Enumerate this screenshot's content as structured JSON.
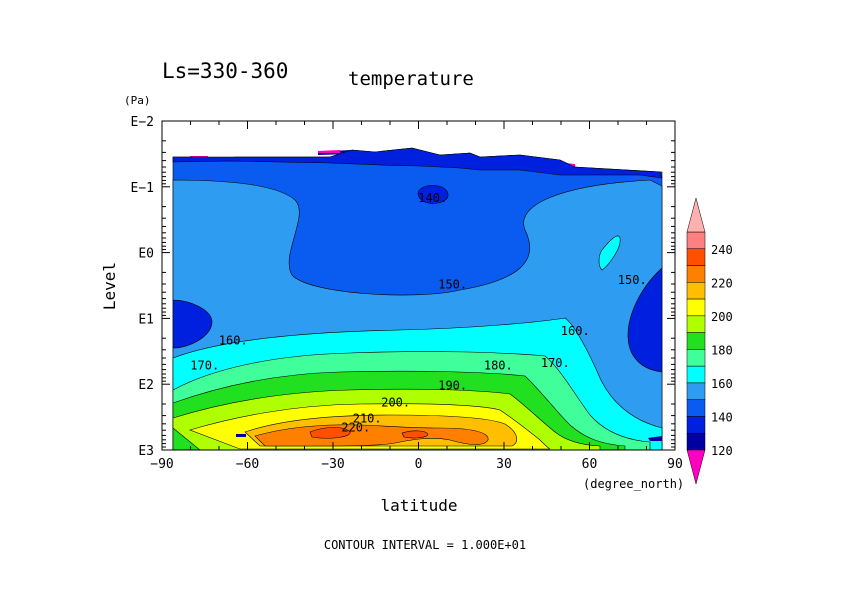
{
  "chart_data": {
    "type": "contour",
    "title": "Ls=330-360",
    "subtitle": "temperature",
    "xlabel": "latitude",
    "xunit": "(degree_north)",
    "ylabel": "Level",
    "yunit": "(Pa)",
    "xlim": [
      -90,
      90
    ],
    "xticks": [
      -90,
      -60,
      -30,
      0,
      30,
      60,
      90
    ],
    "xtick_labels": [
      "−90",
      "−60",
      "−30",
      "0",
      "30",
      "60",
      "90"
    ],
    "yscale": "log",
    "ylim": [
      1000,
      0.01
    ],
    "yticks": [
      0.01,
      0.1,
      1,
      10,
      100,
      1000
    ],
    "ytick_labels": [
      "E−2",
      "E−1",
      "E0",
      "E1",
      "E2",
      "E3"
    ],
    "contour_interval_text": "CONTOUR INTERVAL = 1.000E+01",
    "contour_labels": [
      {
        "text": "140.",
        "lat": 5,
        "p": 0.17
      },
      {
        "text": "150.",
        "lat": 12,
        "p": 3.5
      },
      {
        "text": "150.",
        "lat": 75,
        "p": 3.0
      },
      {
        "text": "160.",
        "lat": -65,
        "p": 25
      },
      {
        "text": "160.",
        "lat": 55,
        "p": 18
      },
      {
        "text": "170.",
        "lat": -75,
        "p": 60
      },
      {
        "text": "170.",
        "lat": 48,
        "p": 55
      },
      {
        "text": "180.",
        "lat": 28,
        "p": 60
      },
      {
        "text": "190.",
        "lat": 12,
        "p": 120
      },
      {
        "text": "200.",
        "lat": -8,
        "p": 220
      },
      {
        "text": "210.",
        "lat": -18,
        "p": 380
      },
      {
        "text": "220.",
        "lat": -22,
        "p": 520
      }
    ],
    "colorbar": {
      "levels": [
        110,
        120,
        130,
        140,
        150,
        160,
        170,
        180,
        190,
        200,
        210,
        220,
        230,
        240,
        250
      ],
      "colors": [
        "#7e1e9c",
        "#0000a0",
        "#0020e0",
        "#0a5cf0",
        "#2e9cf0",
        "#00ffff",
        "#40ff9a",
        "#20e020",
        "#b0ff00",
        "#ffff00",
        "#ffbe00",
        "#ff8000",
        "#ff5000",
        "#ff8080",
        "#ffb0b0"
      ],
      "under_color": "#ff00c0",
      "over_color": "#ffb0b0",
      "tick_labels": [
        "120",
        "140",
        "160",
        "180",
        "200",
        "220",
        "240"
      ],
      "tick_values": [
        120,
        140,
        160,
        180,
        200,
        220,
        240
      ]
    }
  }
}
